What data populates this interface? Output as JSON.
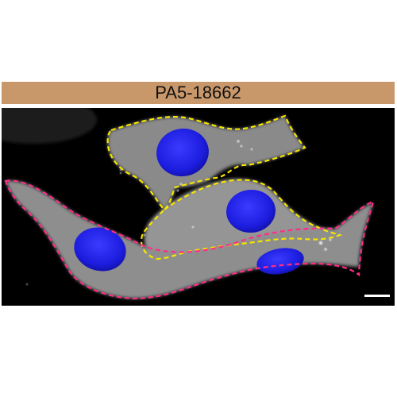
{
  "figure": {
    "label": "PA5-18662",
    "label_bg": "#c8976a"
  },
  "micrograph": {
    "background": "#000000",
    "cell_body_color": "#8c8c8c",
    "nucleus_color": "#2020e6",
    "outline_colors": {
      "yellow": "#f5e600",
      "magenta": "#ff2d86"
    },
    "scale_bar_color": "#ffffff"
  }
}
